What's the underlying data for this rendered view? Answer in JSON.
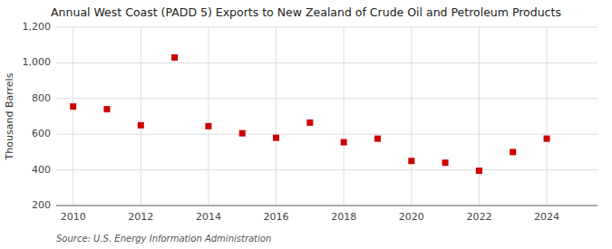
{
  "chart_data": {
    "type": "scatter",
    "title": "Annual West Coast (PADD 5) Exports to New Zealand of Crude Oil and Petroleum Products",
    "y_label": "Thousand Barrels",
    "annotations": [
      "Source: U.S. Energy Information Administration"
    ],
    "x": [
      2010,
      2011,
      2012,
      2013,
      2014,
      2015,
      2016,
      2017,
      2018,
      2019,
      2020,
      2021,
      2022,
      2023,
      2024
    ],
    "values": [
      755,
      740,
      650,
      1030,
      645,
      605,
      580,
      665,
      555,
      575,
      450,
      440,
      395,
      500,
      575
    ],
    "color": "#cc0000",
    "marker": "square",
    "xlim": [
      2009.5,
      2025.5
    ],
    "xticks": [
      2010,
      2012,
      2014,
      2016,
      2018,
      2020,
      2022,
      2024
    ],
    "ylim": [
      200,
      1200
    ],
    "yticks": [
      200,
      400,
      600,
      800,
      {
        "value": 1000,
        "label": "1,000"
      },
      {
        "value": 1200,
        "label": "1,200"
      }
    ],
    "grid": true
  }
}
